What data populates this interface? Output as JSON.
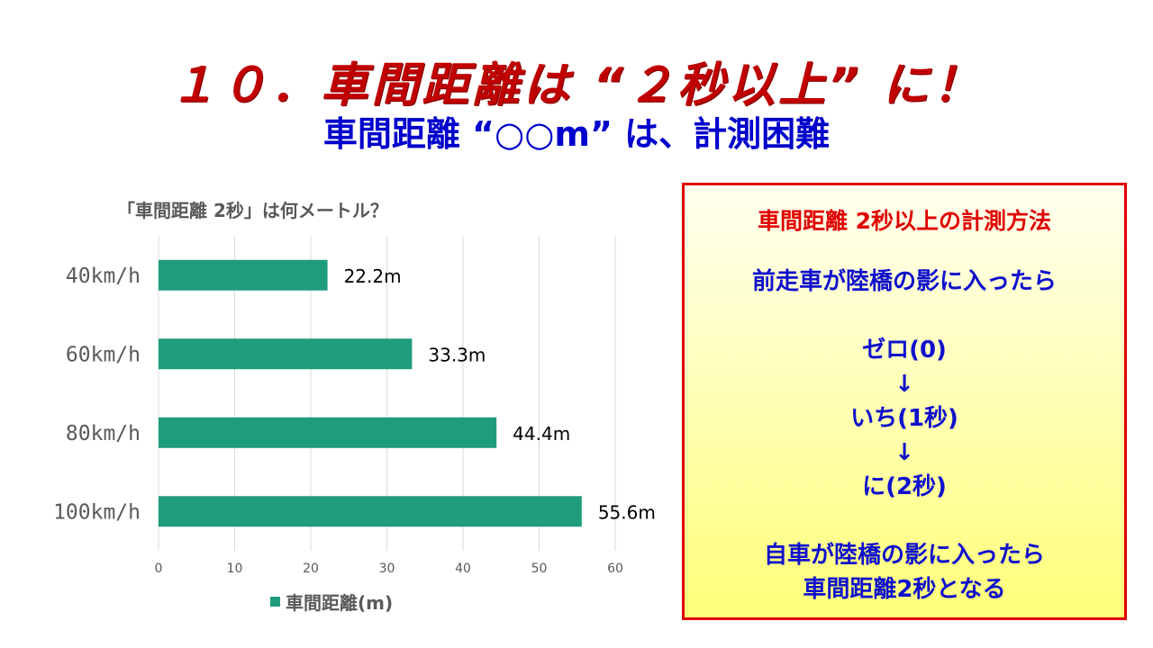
{
  "slide": {
    "title": "１０．車間距離は “２秒以上” に！",
    "subtitle": "車間距離 “○○m” は、計測困難"
  },
  "colors": {
    "bar": "#1f9c7c",
    "highlight_label": "#e00000",
    "title": "#c00000",
    "subtitle": "#0000cc",
    "box_border": "#e00000"
  },
  "chart_data": {
    "type": "bar",
    "orientation": "horizontal",
    "title": "「車間距離 2秒」は何メートル？",
    "categories": [
      "40km/h",
      "60km/h",
      "80km/h",
      "100km/h"
    ],
    "series": [
      {
        "name": "車間距離(m)",
        "values": [
          22.2,
          33.3,
          44.4,
          55.6
        ]
      }
    ],
    "data_labels": [
      "22.2m",
      "33.3m",
      "44.4m",
      "55.6m"
    ],
    "highlight_index": 2,
    "xlim": [
      0,
      60
    ],
    "xticks": [
      0,
      10,
      20,
      30,
      40,
      50,
      60
    ],
    "grid": true,
    "legend": "bottom"
  },
  "box": {
    "heading": "車間距離 2秒以上の計測方法",
    "lines": [
      "前走車が陸橋の影に入ったら",
      "ゼロ(0)",
      "↓",
      "いち(1秒)",
      "↓",
      "に(2秒)",
      "自車が陸橋の影に入ったら",
      "車間距離2秒となる"
    ]
  }
}
